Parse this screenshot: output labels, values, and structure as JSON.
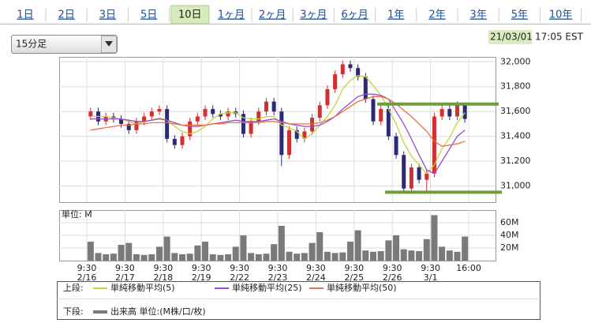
{
  "tabs": [
    {
      "label": "1日",
      "selected": false
    },
    {
      "label": "2日",
      "selected": false
    },
    {
      "label": "3日",
      "selected": false
    },
    {
      "label": "5日",
      "selected": false
    },
    {
      "label": "10日",
      "selected": true
    },
    {
      "label": "1ヶ月",
      "selected": false
    },
    {
      "label": "2ヶ月",
      "selected": false
    },
    {
      "label": "3ヶ月",
      "selected": false
    },
    {
      "label": "6ヶ月",
      "selected": false
    },
    {
      "label": "1年",
      "selected": false
    },
    {
      "label": "2年",
      "selected": false
    },
    {
      "label": "3年",
      "selected": false
    },
    {
      "label": "5年",
      "selected": false
    },
    {
      "label": "10年",
      "selected": false
    }
  ],
  "interval_select": "15分足",
  "timestamp": {
    "date": "21/03/01",
    "time": "17:05 EST"
  },
  "chart_data": {
    "type": "candlestick",
    "up_color": "#d03030",
    "down_color": "#2a2a78",
    "candles_per_day": 5,
    "x_labels": [
      {
        "time": "9:30",
        "date": "2/16"
      },
      {
        "time": "9:30",
        "date": "2/17"
      },
      {
        "time": "9:30",
        "date": "2/18"
      },
      {
        "time": "9:30",
        "date": "2/19"
      },
      {
        "time": "9:30",
        "date": "2/22"
      },
      {
        "time": "9:30",
        "date": "2/23"
      },
      {
        "time": "9:30",
        "date": "2/24"
      },
      {
        "time": "9:30",
        "date": "2/25"
      },
      {
        "time": "9:30",
        "date": "2/26"
      },
      {
        "time": "9:30",
        "date": "3/1"
      },
      {
        "time": "16:00",
        "date": null
      }
    ],
    "ylim": [
      30870,
      32040
    ],
    "yticks": [
      {
        "value": 31000,
        "label": "31,000"
      },
      {
        "value": 31200,
        "label": "31,200"
      },
      {
        "value": 31400,
        "label": "31,400"
      },
      {
        "value": 31600,
        "label": "31,600"
      },
      {
        "value": 31800,
        "label": "31,800"
      },
      {
        "value": 32000,
        "label": "32,000"
      }
    ],
    "grid": true,
    "open": [
      31560,
      31600,
      31520,
      31560,
      31540,
      31500,
      31450,
      31520,
      31560,
      31600,
      31620,
      31380,
      31330,
      31400,
      31520,
      31560,
      31620,
      31580,
      31560,
      31600,
      31580,
      31420,
      31520,
      31600,
      31680,
      31600,
      31250,
      31450,
      31380,
      31440,
      31550,
      31650,
      31780,
      31900,
      31980,
      31950,
      31880,
      31700,
      31520,
      31620,
      31400,
      31250,
      30980,
      31150,
      31050,
      31100,
      31560,
      31620,
      31560,
      31650
    ],
    "high": [
      31630,
      31630,
      31590,
      31590,
      31570,
      31530,
      31550,
      31590,
      31630,
      31650,
      31650,
      31410,
      31430,
      31550,
      31590,
      31650,
      31650,
      31610,
      31630,
      31630,
      31610,
      31550,
      31630,
      31710,
      31710,
      31630,
      31480,
      31480,
      31470,
      31580,
      31680,
      31810,
      31930,
      32010,
      32010,
      31980,
      31910,
      31730,
      31650,
      31650,
      31430,
      31280,
      31180,
      31180,
      31130,
      31590,
      31650,
      31650,
      31680,
      31670
    ],
    "low": [
      31530,
      31490,
      31490,
      31510,
      31470,
      31420,
      31420,
      31490,
      31530,
      31570,
      31350,
      31300,
      31300,
      31370,
      31490,
      31530,
      31550,
      31530,
      31530,
      31550,
      31390,
      31390,
      31490,
      31570,
      31570,
      31160,
      31220,
      31350,
      31350,
      31410,
      31520,
      31620,
      31750,
      31870,
      31920,
      31850,
      31670,
      31490,
      31490,
      31370,
      31220,
      30950,
      30950,
      31020,
      30940,
      31070,
      31530,
      31530,
      31530,
      31510
    ],
    "close": [
      31600,
      31520,
      31560,
      31540,
      31500,
      31450,
      31520,
      31560,
      31600,
      31620,
      31380,
      31330,
      31400,
      31520,
      31560,
      31620,
      31580,
      31560,
      31600,
      31580,
      31420,
      31520,
      31600,
      31680,
      31600,
      31250,
      31450,
      31380,
      31440,
      31550,
      31650,
      31780,
      31900,
      31980,
      31950,
      31880,
      31700,
      31520,
      31620,
      31400,
      31250,
      30980,
      31150,
      31050,
      31100,
      31560,
      31620,
      31560,
      31650,
      31540
    ],
    "series": [
      {
        "name": "単純移動平均(5)",
        "color": "#c8d23c",
        "values": [
          31560,
          31560,
          31560,
          31550,
          31540,
          31520,
          31500,
          31520,
          31530,
          31550,
          31530,
          31480,
          31440,
          31420,
          31440,
          31480,
          31540,
          31580,
          31590,
          31590,
          31550,
          31540,
          31540,
          31560,
          31560,
          31490,
          31470,
          31440,
          31380,
          31420,
          31490,
          31560,
          31650,
          31780,
          31850,
          31890,
          31880,
          31810,
          31730,
          31620,
          31500,
          31350,
          31240,
          31170,
          31100,
          31170,
          31300,
          31390,
          31510,
          31590
        ]
      },
      {
        "name": "単純移動平均(25)",
        "color": "#9a4ec8",
        "values": [
          31540,
          31540,
          31540,
          31540,
          31540,
          31530,
          31520,
          31520,
          31530,
          31540,
          31530,
          31510,
          31490,
          31480,
          31480,
          31490,
          31500,
          31510,
          31520,
          31530,
          31520,
          31520,
          31520,
          31530,
          31540,
          31520,
          31500,
          31490,
          31480,
          31480,
          31490,
          31520,
          31560,
          31620,
          31670,
          31720,
          31740,
          31740,
          31730,
          31700,
          31600,
          31500,
          31380,
          31250,
          31130,
          31100,
          31200,
          31300,
          31400,
          31450
        ]
      },
      {
        "name": "単純移動平均(50)",
        "color": "#e8704a",
        "values": [
          31450,
          31460,
          31470,
          31480,
          31490,
          31490,
          31500,
          31500,
          31510,
          31510,
          31510,
          31500,
          31490,
          31490,
          31490,
          31490,
          31500,
          31500,
          31510,
          31510,
          31510,
          31510,
          31510,
          31520,
          31520,
          31510,
          31500,
          31500,
          31500,
          31500,
          31510,
          31530,
          31560,
          31600,
          31640,
          31680,
          31700,
          31720,
          31720,
          31700,
          31660,
          31610,
          31560,
          31500,
          31440,
          31360,
          31320,
          31330,
          31340,
          31360
        ]
      }
    ],
    "hlines": [
      {
        "value": 31660,
        "color": "#6e9e3a"
      },
      {
        "value": 30950,
        "color": "#6e9e3a"
      }
    ],
    "volume": {
      "unit_label": "単位: M",
      "name": "出来高 単位:(M株/口/枚)",
      "color": "#7a7a7a",
      "ylim": [
        0,
        80
      ],
      "yticks": [
        {
          "value": 20,
          "label": "20M"
        },
        {
          "value": 40,
          "label": "40M"
        },
        {
          "value": 60,
          "label": "60M"
        }
      ],
      "values": [
        30,
        12,
        10,
        11,
        25,
        28,
        10,
        9,
        10,
        22,
        38,
        12,
        10,
        11,
        24,
        30,
        10,
        9,
        10,
        22,
        40,
        12,
        10,
        11,
        26,
        55,
        14,
        11,
        12,
        28,
        45,
        14,
        12,
        13,
        30,
        48,
        16,
        14,
        15,
        32,
        40,
        18,
        16,
        15,
        34,
        72,
        22,
        16,
        14,
        38
      ]
    },
    "legend": {
      "upper": "上段:",
      "lower": "下段:"
    }
  }
}
